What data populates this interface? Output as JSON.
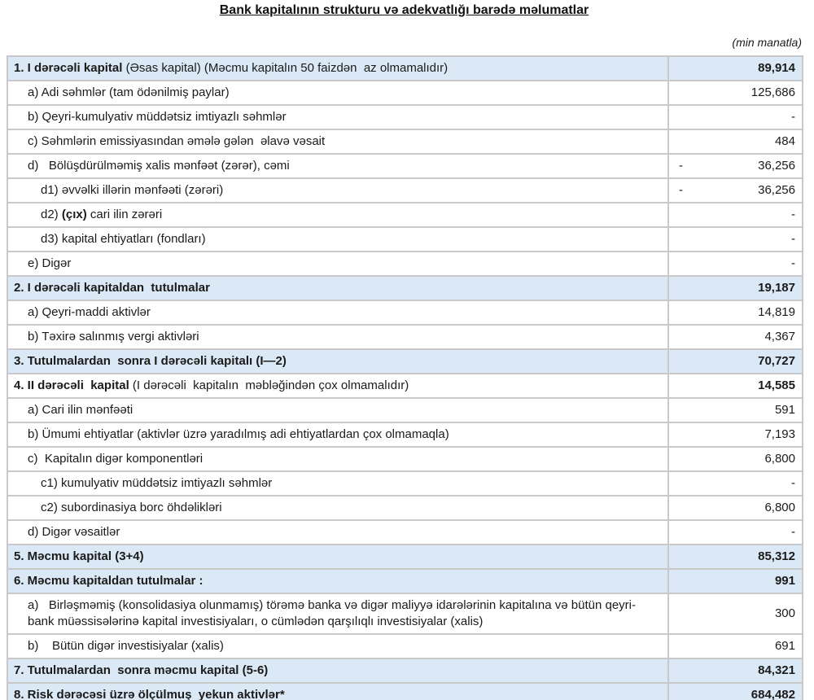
{
  "title": "Bank kapitalının strukturu və adekvatlığı barədə məlumatlar",
  "unit_note": "(min manatla)",
  "colors": {
    "highlight_row_bg": "#dbe8f5",
    "border": "#c9c9c9",
    "text": "#1b1b1b"
  },
  "table": {
    "rows": [
      {
        "segments": [
          {
            "t": "1. I dərəcəli kapital",
            "b": true
          },
          {
            "t": " (Əsas kapital) (Məcmu kapitalın 50 faizdən  az olmamalıdır)",
            "b": false
          }
        ],
        "value": "89,914",
        "minus": false,
        "level": 0,
        "highlight": true,
        "value_bold": true
      },
      {
        "segments": [
          {
            "t": "a) Adi səhmlər (tam ödənilmiş paylar)",
            "b": false
          }
        ],
        "value": "125,686",
        "minus": false,
        "level": 1,
        "highlight": false,
        "value_bold": false
      },
      {
        "segments": [
          {
            "t": "b) Qeyri-kumulyativ müddətsiz imtiyazlı səhmlər",
            "b": false
          }
        ],
        "value": "-",
        "minus": false,
        "level": 1,
        "highlight": false,
        "value_bold": false
      },
      {
        "segments": [
          {
            "t": "c) Səhmlərin emissiyasından əmələ gələn  əlavə vəsait",
            "b": false
          }
        ],
        "value": "484",
        "minus": false,
        "level": 1,
        "highlight": false,
        "value_bold": false
      },
      {
        "segments": [
          {
            "t": "d)   Bölüşdürülməmiş xalis mənfəət (zərər), cəmi",
            "b": false
          }
        ],
        "value": "36,256",
        "minus": true,
        "level": 1,
        "highlight": false,
        "value_bold": false
      },
      {
        "segments": [
          {
            "t": "d1) əvvəlki illərin mənfəəti (zərəri)",
            "b": false
          }
        ],
        "value": "36,256",
        "minus": true,
        "level": 2,
        "highlight": false,
        "value_bold": false
      },
      {
        "segments": [
          {
            "t": "d2) ",
            "b": false
          },
          {
            "t": "(çıx)",
            "b": true
          },
          {
            "t": " cari ilin zərəri",
            "b": false
          }
        ],
        "value": "-",
        "minus": false,
        "level": 2,
        "highlight": false,
        "value_bold": false
      },
      {
        "segments": [
          {
            "t": "d3) kapital ehtiyatları (fondları)",
            "b": false
          }
        ],
        "value": "-",
        "minus": false,
        "level": 2,
        "highlight": false,
        "value_bold": false
      },
      {
        "segments": [
          {
            "t": "e) Digər",
            "b": false
          }
        ],
        "value": "-",
        "minus": false,
        "level": 1,
        "highlight": false,
        "value_bold": false
      },
      {
        "segments": [
          {
            "t": "2. I dərəcəli kapitaldan  tutulmalar",
            "b": true
          }
        ],
        "value": "19,187",
        "minus": false,
        "level": 0,
        "highlight": true,
        "value_bold": true
      },
      {
        "segments": [
          {
            "t": "a) Qeyri-maddi aktivlər",
            "b": false
          }
        ],
        "value": "14,819",
        "minus": false,
        "level": 1,
        "highlight": false,
        "value_bold": false
      },
      {
        "segments": [
          {
            "t": "b) Təxirə salınmış vergi aktivləri",
            "b": false
          }
        ],
        "value": "4,367",
        "minus": false,
        "level": 1,
        "highlight": false,
        "value_bold": false
      },
      {
        "segments": [
          {
            "t": "3. Tutulmalardan  sonra I dərəcəli kapitalı (I—2)",
            "b": true
          }
        ],
        "value": "70,727",
        "minus": false,
        "level": 0,
        "highlight": true,
        "value_bold": true
      },
      {
        "segments": [
          {
            "t": "4. II dərəcəli  kapital",
            "b": true
          },
          {
            "t": " (I dərəcəli  kapitalın  məbləğindən çox olmamalıdır)",
            "b": false
          }
        ],
        "value": "14,585",
        "minus": false,
        "level": 0,
        "highlight": false,
        "value_bold": true
      },
      {
        "segments": [
          {
            "t": "a) Cari ilin mənfəəti",
            "b": false
          }
        ],
        "value": "591",
        "minus": false,
        "level": 1,
        "highlight": false,
        "value_bold": false
      },
      {
        "segments": [
          {
            "t": "b) Ümumi ehtiyatlar (aktivlər üzrə yaradılmış adi ehtiyatlardan çox olmamaqla)",
            "b": false
          }
        ],
        "value": "7,193",
        "minus": false,
        "level": 1,
        "highlight": false,
        "value_bold": false
      },
      {
        "segments": [
          {
            "t": "c)  Kapitalın digər komponentləri",
            "b": false
          }
        ],
        "value": "6,800",
        "minus": false,
        "level": 1,
        "highlight": false,
        "value_bold": false
      },
      {
        "segments": [
          {
            "t": "c1) kumulyativ müddətsiz imtiyazlı səhmlər",
            "b": false
          }
        ],
        "value": "-",
        "minus": false,
        "level": 2,
        "highlight": false,
        "value_bold": false
      },
      {
        "segments": [
          {
            "t": "c2) subordinasiya borc öhdəlikləri",
            "b": false
          }
        ],
        "value": "6,800",
        "minus": false,
        "level": 2,
        "highlight": false,
        "value_bold": false
      },
      {
        "segments": [
          {
            "t": "d) Digər vəsaitlər",
            "b": false
          }
        ],
        "value": "-",
        "minus": false,
        "level": 1,
        "highlight": false,
        "value_bold": false
      },
      {
        "segments": [
          {
            "t": "5. Məcmu kapital (3+4)",
            "b": true
          }
        ],
        "value": "85,312",
        "minus": false,
        "level": 0,
        "highlight": true,
        "value_bold": true
      },
      {
        "segments": [
          {
            "t": "6. Məcmu kapitaldan tutulmalar :",
            "b": true
          }
        ],
        "value": "991",
        "minus": false,
        "level": 0,
        "highlight": true,
        "value_bold": true
      },
      {
        "segments": [
          {
            "t": "a)   Birləşməmiş (konsolidasiya olunmamış) törəmə banka və digər maliyyə idarələrinin kapitalına və bütün qeyri-bank müəssisələrinə kapital investisiyaları, o cümlədən qarşılıqlı investisiyalar (xalis)",
            "b": false
          }
        ],
        "value": "300",
        "minus": false,
        "level": 1,
        "highlight": false,
        "value_bold": false
      },
      {
        "segments": [
          {
            "t": "b)    Bütün digər investisiyalar (xalis)",
            "b": false
          }
        ],
        "value": "691",
        "minus": false,
        "level": 1,
        "highlight": false,
        "value_bold": false
      },
      {
        "segments": [
          {
            "t": "7. Tutulmalardan  sonra məcmu kapital (5-6)",
            "b": true
          }
        ],
        "value": "84,321",
        "minus": false,
        "level": 0,
        "highlight": true,
        "value_bold": true
      },
      {
        "segments": [
          {
            "t": "8. Risk dərəcəsi üzrə ölçülmuş  yekun aktivlər*",
            "b": true
          }
        ],
        "value": "684,482",
        "minus": false,
        "level": 0,
        "highlight": true,
        "value_bold": true
      }
    ]
  }
}
